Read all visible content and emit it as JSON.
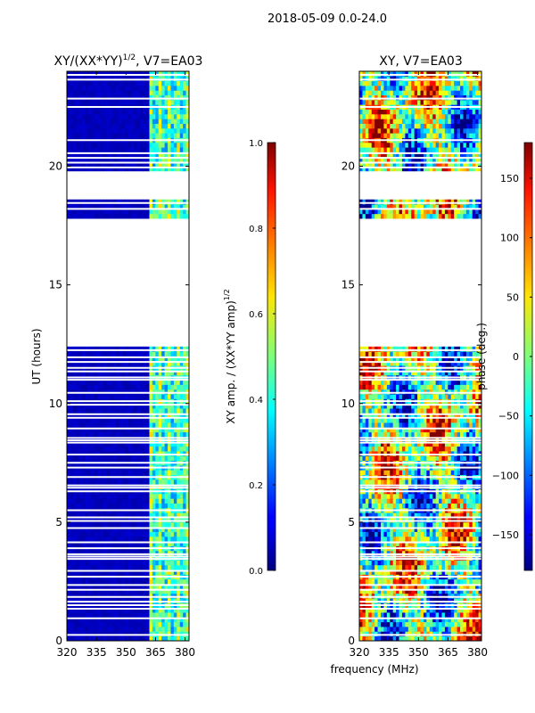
{
  "suptitle": "2018-05-09 0.0-24.0",
  "xlabel": "frequency (MHz)",
  "chart_data": [
    {
      "type": "heatmap",
      "id": "amp",
      "title_text": "XY/(XX*YY)",
      "title_sup": "1/2",
      "title_tail": ", V7=EA03",
      "ylabel": "UT (hours)",
      "xlabel": "frequency (MHz)",
      "xlim": [
        320,
        382
      ],
      "ylim": [
        0,
        24
      ],
      "xticks": [
        320,
        335,
        350,
        365,
        380
      ],
      "yticks": [
        0,
        5,
        10,
        15,
        20
      ],
      "colorbar": {
        "label": "XY amp. / (XX*YY amp)",
        "label_sup": "1/2",
        "range": [
          0.0,
          1.0
        ],
        "ticks": [
          "0.0",
          "0.2",
          "0.4",
          "0.6",
          "0.8",
          "1.0"
        ],
        "tick_values": [
          0.0,
          0.2,
          0.4,
          0.6,
          0.8,
          1.0
        ],
        "colormap": "jet"
      },
      "typical_values": {
        "320-360 MHz": 0.05,
        "362-382 MHz": [
          0.3,
          0.5
        ]
      }
    },
    {
      "type": "heatmap",
      "id": "phase",
      "title_text": "XY, V7=EA03",
      "xlabel": "frequency (MHz)",
      "xlim": [
        320,
        382
      ],
      "ylim": [
        0,
        24
      ],
      "xticks": [
        320,
        335,
        350,
        365,
        380
      ],
      "yticks": [
        0,
        5,
        10,
        15,
        20
      ],
      "colorbar": {
        "label": "phase (deg.)",
        "range": [
          -180,
          180
        ],
        "ticks": [
          "150",
          "100",
          "50",
          "0",
          "−50",
          "−100",
          "−150"
        ],
        "tick_values": [
          150,
          100,
          50,
          0,
          -50,
          -100,
          -150
        ],
        "colormap": "jet"
      }
    }
  ],
  "data_coverage_hours": [
    [
      0.0,
      12.4
    ],
    [
      17.8,
      18.6
    ],
    [
      19.8,
      24.0
    ]
  ],
  "gap_lines_hours": [
    0.25,
    0.95,
    1.35,
    1.5,
    1.65,
    1.85,
    2.15,
    2.35,
    2.7,
    2.95,
    3.45,
    3.55,
    3.65,
    3.9,
    4.15,
    4.75,
    5.05,
    5.2,
    5.5,
    6.3,
    6.45,
    6.55,
    6.9,
    7.3,
    7.5,
    7.85,
    8.35,
    8.45,
    8.55,
    8.95,
    9.4,
    9.55,
    9.95,
    10.1,
    10.45,
    11.0,
    11.1,
    11.35,
    11.5,
    11.75,
    11.95,
    12.25,
    18.2,
    18.45,
    19.95,
    20.15,
    20.35,
    20.55,
    21.1,
    22.5,
    22.85,
    23.65,
    23.85
  ]
}
